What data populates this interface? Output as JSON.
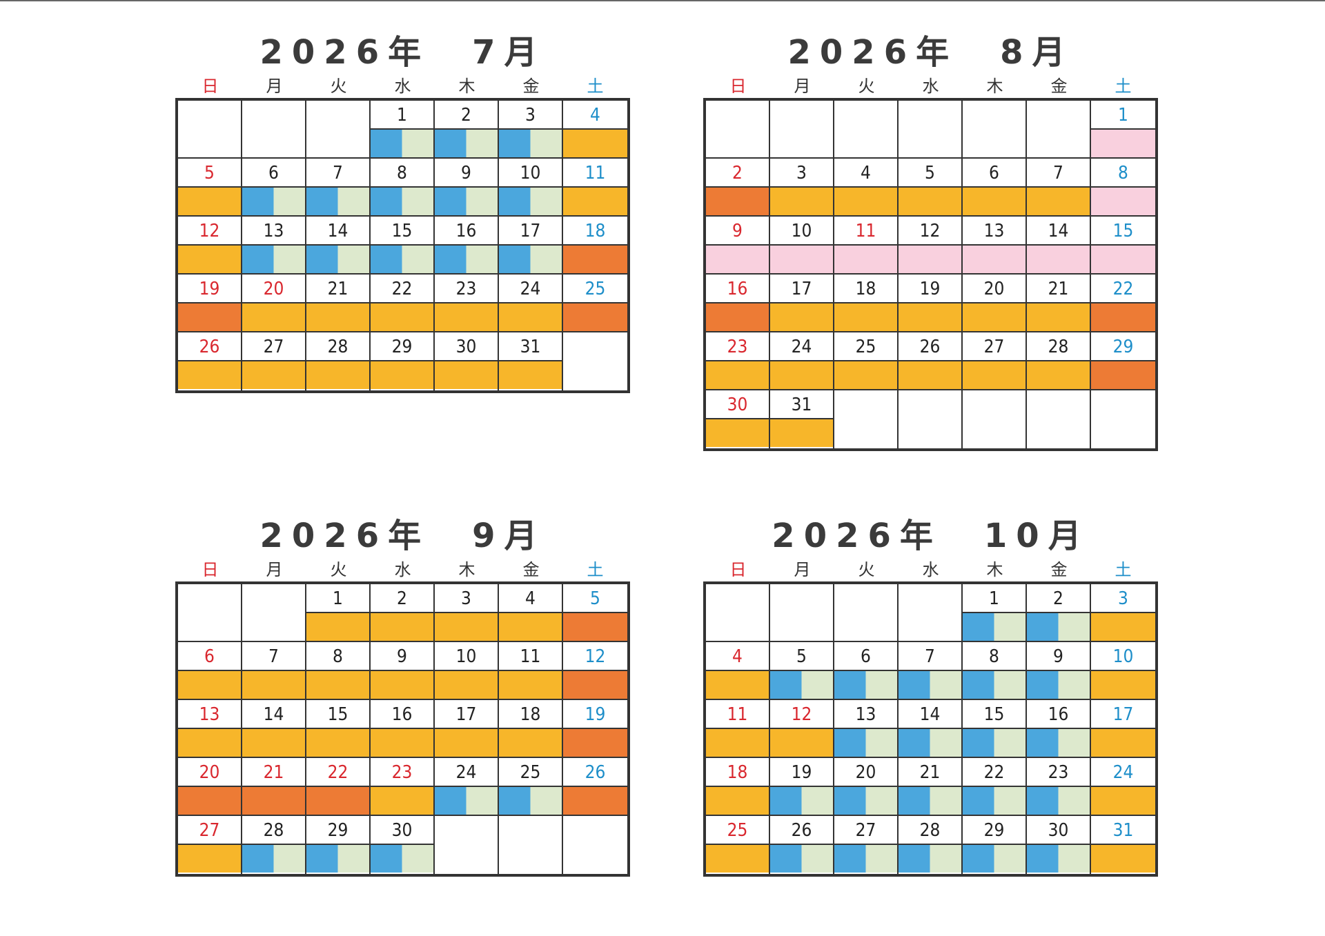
{
  "weekday_labels": [
    "日",
    "月",
    "火",
    "水",
    "木",
    "金",
    "土"
  ],
  "legend_colors": {
    "o": "#f7b62a",
    "r": "#ed7b35",
    "p": "#f9d0de",
    "b_left": "#4ba7dd",
    "b_right": "#dde9cd"
  },
  "calendars": [
    {
      "title": "2026年　7月",
      "weeks": [
        [
          null,
          null,
          null,
          {
            "d": "1",
            "s": "b"
          },
          {
            "d": "2",
            "s": "b"
          },
          {
            "d": "3",
            "s": "b"
          },
          {
            "d": "4",
            "s": "o"
          }
        ],
        [
          {
            "d": "5",
            "s": "o"
          },
          {
            "d": "6",
            "s": "b"
          },
          {
            "d": "7",
            "s": "b"
          },
          {
            "d": "8",
            "s": "b"
          },
          {
            "d": "9",
            "s": "b"
          },
          {
            "d": "10",
            "s": "b"
          },
          {
            "d": "11",
            "s": "o"
          }
        ],
        [
          {
            "d": "12",
            "s": "o"
          },
          {
            "d": "13",
            "s": "b"
          },
          {
            "d": "14",
            "s": "b"
          },
          {
            "d": "15",
            "s": "b"
          },
          {
            "d": "16",
            "s": "b"
          },
          {
            "d": "17",
            "s": "b"
          },
          {
            "d": "18",
            "s": "r"
          }
        ],
        [
          {
            "d": "19",
            "s": "r"
          },
          {
            "d": "20",
            "s": "o",
            "h": true
          },
          {
            "d": "21",
            "s": "o"
          },
          {
            "d": "22",
            "s": "o"
          },
          {
            "d": "23",
            "s": "o"
          },
          {
            "d": "24",
            "s": "o"
          },
          {
            "d": "25",
            "s": "r"
          }
        ],
        [
          {
            "d": "26",
            "s": "o"
          },
          {
            "d": "27",
            "s": "o"
          },
          {
            "d": "28",
            "s": "o"
          },
          {
            "d": "29",
            "s": "o"
          },
          {
            "d": "30",
            "s": "o"
          },
          {
            "d": "31",
            "s": "o"
          },
          null
        ]
      ]
    },
    {
      "title": "2026年　8月",
      "weeks": [
        [
          null,
          null,
          null,
          null,
          null,
          null,
          {
            "d": "1",
            "s": "p"
          }
        ],
        [
          {
            "d": "2",
            "s": "r"
          },
          {
            "d": "3",
            "s": "o"
          },
          {
            "d": "4",
            "s": "o"
          },
          {
            "d": "5",
            "s": "o"
          },
          {
            "d": "6",
            "s": "o"
          },
          {
            "d": "7",
            "s": "o"
          },
          {
            "d": "8",
            "s": "p"
          }
        ],
        [
          {
            "d": "9",
            "s": "p"
          },
          {
            "d": "10",
            "s": "p"
          },
          {
            "d": "11",
            "s": "p",
            "h": true
          },
          {
            "d": "12",
            "s": "p"
          },
          {
            "d": "13",
            "s": "p"
          },
          {
            "d": "14",
            "s": "p"
          },
          {
            "d": "15",
            "s": "p"
          }
        ],
        [
          {
            "d": "16",
            "s": "r"
          },
          {
            "d": "17",
            "s": "o"
          },
          {
            "d": "18",
            "s": "o"
          },
          {
            "d": "19",
            "s": "o"
          },
          {
            "d": "20",
            "s": "o"
          },
          {
            "d": "21",
            "s": "o"
          },
          {
            "d": "22",
            "s": "r"
          }
        ],
        [
          {
            "d": "23",
            "s": "o"
          },
          {
            "d": "24",
            "s": "o"
          },
          {
            "d": "25",
            "s": "o"
          },
          {
            "d": "26",
            "s": "o"
          },
          {
            "d": "27",
            "s": "o"
          },
          {
            "d": "28",
            "s": "o"
          },
          {
            "d": "29",
            "s": "r"
          }
        ],
        [
          {
            "d": "30",
            "s": "o"
          },
          {
            "d": "31",
            "s": "o"
          },
          null,
          null,
          null,
          null,
          null
        ]
      ]
    },
    {
      "title": "2026年　9月",
      "weeks": [
        [
          null,
          null,
          {
            "d": "1",
            "s": "o"
          },
          {
            "d": "2",
            "s": "o"
          },
          {
            "d": "3",
            "s": "o"
          },
          {
            "d": "4",
            "s": "o"
          },
          {
            "d": "5",
            "s": "r"
          }
        ],
        [
          {
            "d": "6",
            "s": "o"
          },
          {
            "d": "7",
            "s": "o"
          },
          {
            "d": "8",
            "s": "o"
          },
          {
            "d": "9",
            "s": "o"
          },
          {
            "d": "10",
            "s": "o"
          },
          {
            "d": "11",
            "s": "o"
          },
          {
            "d": "12",
            "s": "r"
          }
        ],
        [
          {
            "d": "13",
            "s": "o"
          },
          {
            "d": "14",
            "s": "o"
          },
          {
            "d": "15",
            "s": "o"
          },
          {
            "d": "16",
            "s": "o"
          },
          {
            "d": "17",
            "s": "o"
          },
          {
            "d": "18",
            "s": "o"
          },
          {
            "d": "19",
            "s": "r"
          }
        ],
        [
          {
            "d": "20",
            "s": "r"
          },
          {
            "d": "21",
            "s": "r",
            "h": true
          },
          {
            "d": "22",
            "s": "r",
            "h": true
          },
          {
            "d": "23",
            "s": "o",
            "h": true
          },
          {
            "d": "24",
            "s": "b"
          },
          {
            "d": "25",
            "s": "b"
          },
          {
            "d": "26",
            "s": "r"
          }
        ],
        [
          {
            "d": "27",
            "s": "o"
          },
          {
            "d": "28",
            "s": "b"
          },
          {
            "d": "29",
            "s": "b"
          },
          {
            "d": "30",
            "s": "b"
          },
          null,
          null,
          null
        ]
      ]
    },
    {
      "title": "2026年　10月",
      "weeks": [
        [
          null,
          null,
          null,
          null,
          {
            "d": "1",
            "s": "b"
          },
          {
            "d": "2",
            "s": "b"
          },
          {
            "d": "3",
            "s": "o"
          }
        ],
        [
          {
            "d": "4",
            "s": "o"
          },
          {
            "d": "5",
            "s": "b"
          },
          {
            "d": "6",
            "s": "b"
          },
          {
            "d": "7",
            "s": "b"
          },
          {
            "d": "8",
            "s": "b"
          },
          {
            "d": "9",
            "s": "b"
          },
          {
            "d": "10",
            "s": "o"
          }
        ],
        [
          {
            "d": "11",
            "s": "o"
          },
          {
            "d": "12",
            "s": "o",
            "h": true
          },
          {
            "d": "13",
            "s": "b"
          },
          {
            "d": "14",
            "s": "b"
          },
          {
            "d": "15",
            "s": "b"
          },
          {
            "d": "16",
            "s": "b"
          },
          {
            "d": "17",
            "s": "o"
          }
        ],
        [
          {
            "d": "18",
            "s": "o"
          },
          {
            "d": "19",
            "s": "b"
          },
          {
            "d": "20",
            "s": "b"
          },
          {
            "d": "21",
            "s": "b"
          },
          {
            "d": "22",
            "s": "b"
          },
          {
            "d": "23",
            "s": "b"
          },
          {
            "d": "24",
            "s": "o"
          }
        ],
        [
          {
            "d": "25",
            "s": "o"
          },
          {
            "d": "26",
            "s": "b"
          },
          {
            "d": "27",
            "s": "b"
          },
          {
            "d": "28",
            "s": "b"
          },
          {
            "d": "29",
            "s": "b"
          },
          {
            "d": "30",
            "s": "b"
          },
          {
            "d": "31",
            "s": "o"
          }
        ]
      ]
    }
  ]
}
